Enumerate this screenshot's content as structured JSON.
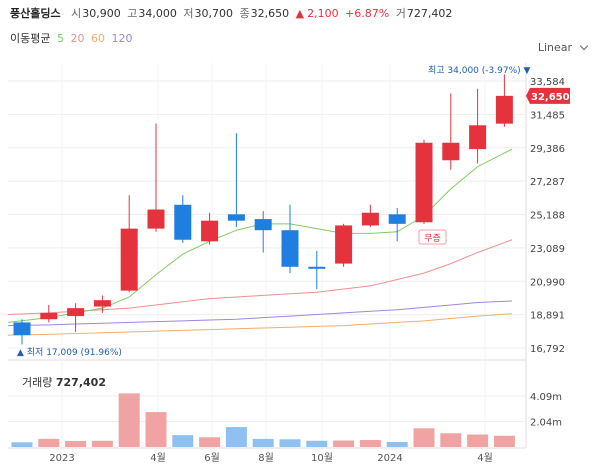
{
  "header": {
    "stock_name": "풍산홀딩스",
    "open_label": "시",
    "open": "30,900",
    "high_label": "고",
    "high": "34,000",
    "low_label": "저",
    "low": "30,700",
    "close_label": "종",
    "close": "32,650",
    "change_arrow": "▲",
    "change": "2,100",
    "change_pct": "+6.87%",
    "volume_label": "거",
    "volume": "727,402"
  },
  "moving_average": {
    "label": "이동평균",
    "periods": [
      {
        "value": "5",
        "color": "#7ecb63"
      },
      {
        "value": "20",
        "color": "#f08f8f"
      },
      {
        "value": "60",
        "color": "#f3ae6a"
      },
      {
        "value": "120",
        "color": "#9f86e0"
      }
    ]
  },
  "scale_selector": {
    "label": "Linear",
    "icon": "chevron-down-icon"
  },
  "annotations": {
    "max": "최고 34,000 (-3.97%)",
    "min": "최저 17,009 (91.96%)",
    "split": "무증",
    "current_price": "32,650"
  },
  "volume_panel": {
    "label": "거래량",
    "value": "727,402"
  },
  "colors": {
    "up": "#e5333d",
    "down": "#1f7fe0",
    "grid": "#eeeeee"
  },
  "chart_data": {
    "type": "candlestick",
    "y_axis_ticks": [
      "33,584",
      "31,485",
      "29,386",
      "27,287",
      "25,188",
      "23,089",
      "20,990",
      "18,891",
      "16,792"
    ],
    "y_tick_values": [
      33584,
      31485,
      29386,
      27287,
      25188,
      23089,
      20990,
      18891,
      16792
    ],
    "x_axis_labels": [
      "2023",
      "4월",
      "6월",
      "8월",
      "10월",
      "2024",
      "4월"
    ],
    "candles": [
      {
        "o": 18400,
        "h": 18600,
        "l": 17009,
        "c": 17600
      },
      {
        "o": 18600,
        "h": 19500,
        "l": 18400,
        "c": 19000
      },
      {
        "o": 18800,
        "h": 19600,
        "l": 17800,
        "c": 19300
      },
      {
        "o": 19400,
        "h": 20100,
        "l": 19000,
        "c": 19800
      },
      {
        "o": 20400,
        "h": 26400,
        "l": 20300,
        "c": 24300
      },
      {
        "o": 24300,
        "h": 30900,
        "l": 24100,
        "c": 25500
      },
      {
        "o": 25800,
        "h": 26400,
        "l": 23400,
        "c": 23600
      },
      {
        "o": 23500,
        "h": 25300,
        "l": 23300,
        "c": 24800
      },
      {
        "o": 25200,
        "h": 30300,
        "l": 24400,
        "c": 24800
      },
      {
        "o": 24900,
        "h": 25400,
        "l": 22800,
        "c": 24200
      },
      {
        "o": 24200,
        "h": 25800,
        "l": 21500,
        "c": 21900
      },
      {
        "o": 21900,
        "h": 22900,
        "l": 20500,
        "c": 21800
      },
      {
        "o": 22100,
        "h": 24600,
        "l": 21900,
        "c": 24500
      },
      {
        "o": 24500,
        "h": 25800,
        "l": 24400,
        "c": 25300
      },
      {
        "o": 25200,
        "h": 25600,
        "l": 23500,
        "c": 24600
      },
      {
        "o": 24700,
        "h": 29900,
        "l": 24600,
        "c": 29700
      },
      {
        "o": 28600,
        "h": 32800,
        "l": 28000,
        "c": 29700
      },
      {
        "o": 29300,
        "h": 33100,
        "l": 28400,
        "c": 30800
      },
      {
        "o": 30900,
        "h": 34000,
        "l": 30700,
        "c": 32650
      }
    ],
    "ma5": [
      18400,
      18700,
      19000,
      19300,
      20000,
      21400,
      22700,
      23500,
      24200,
      24600,
      24600,
      24300,
      24000,
      24000,
      24100,
      25100,
      26800,
      28200,
      29300
    ],
    "ma20": [
      18900,
      19000,
      19100,
      19200,
      19300,
      19500,
      19700,
      19900,
      20000,
      20100,
      20200,
      20300,
      20500,
      20700,
      21100,
      21500,
      22100,
      22800,
      23600
    ],
    "ma60": [
      17600,
      17650,
      17700,
      17750,
      17800,
      17850,
      17900,
      17950,
      18000,
      18050,
      18100,
      18150,
      18200,
      18300,
      18400,
      18500,
      18650,
      18800,
      18950
    ],
    "ma120": [
      18200,
      18250,
      18300,
      18350,
      18400,
      18450,
      18500,
      18550,
      18600,
      18700,
      18800,
      18900,
      19000,
      19100,
      19200,
      19350,
      19500,
      19650,
      19750
    ],
    "volume_ticks": [
      "4.09m",
      "2.04m"
    ],
    "volume_tick_values": [
      4090000,
      2040000
    ],
    "volumes": [
      380000,
      650000,
      480000,
      500000,
      4300000,
      2800000,
      950000,
      780000,
      1600000,
      650000,
      620000,
      500000,
      520000,
      560000,
      400000,
      1500000,
      1100000,
      1000000,
      900000
    ]
  }
}
